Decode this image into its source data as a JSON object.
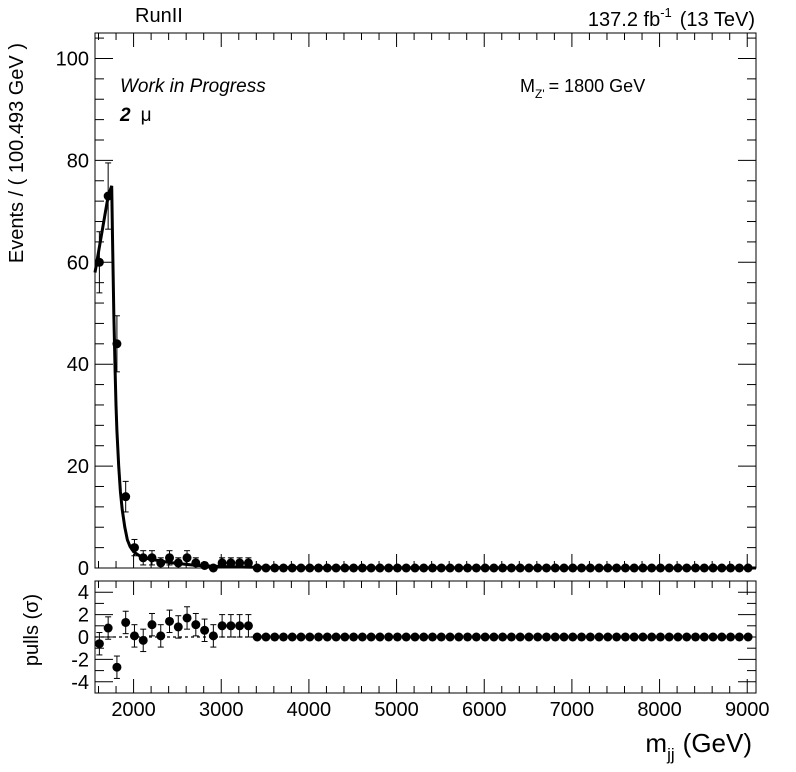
{
  "header": {
    "run_label": "RunII",
    "lumi_value": "137.2 fb",
    "lumi_exponent": "-1",
    "energy": "(13 TeV)"
  },
  "annotations": {
    "status": "Work in Progress",
    "channel_number": "2",
    "channel_symbol": "μ",
    "mass_prefix": "M",
    "mass_subscript": "Z'",
    "mass_value": "= 1800 GeV"
  },
  "chart_data": [
    {
      "type": "scatter",
      "panel": "main",
      "ylabel": "Events / ( 100.493 GeV )",
      "xlim": [
        1560,
        9100
      ],
      "ylim": [
        0,
        105
      ],
      "yticks": [
        0,
        20,
        40,
        60,
        80,
        100
      ],
      "grid": false,
      "series": [
        {
          "kind": "data",
          "x": [
            1610,
            1710,
            1810,
            1910,
            2010,
            2110,
            2210,
            2310,
            2410,
            2510,
            2610,
            2710,
            2810,
            2910,
            3010,
            3110,
            3210,
            3310,
            3410,
            3510,
            3610,
            3710,
            3810,
            3910,
            4010,
            4110,
            4210,
            4310,
            4410,
            4510,
            4610,
            4710,
            4810,
            4910,
            5010,
            5110,
            5210,
            5310,
            5410,
            5510,
            5610,
            5710,
            5810,
            5910,
            6010,
            6110,
            6210,
            6310,
            6410,
            6510,
            6610,
            6710,
            6810,
            6910,
            7010,
            7110,
            7210,
            7310,
            7410,
            7510,
            7610,
            7710,
            7810,
            7910,
            8010,
            8110,
            8210,
            8310,
            8410,
            8510,
            8610,
            8710,
            8810,
            8910,
            9010
          ],
          "y": [
            60,
            73,
            44,
            14,
            4,
            2,
            2,
            1,
            2,
            1,
            2,
            1,
            0.5,
            0,
            1,
            1,
            1,
            1,
            0,
            0,
            0,
            0,
            0,
            0,
            0,
            0,
            0,
            0,
            0,
            0,
            0,
            0,
            0,
            0,
            0,
            0,
            0,
            0,
            0,
            0,
            0,
            0,
            0,
            0,
            0,
            0,
            0,
            0,
            0,
            0,
            0,
            0,
            0,
            0,
            0,
            0,
            0,
            0,
            0,
            0,
            0,
            0,
            0,
            0,
            0,
            0,
            0,
            0,
            0,
            0,
            0,
            0,
            0,
            0,
            0
          ],
          "yerr": [
            6,
            6.5,
            5.5,
            3,
            1.6,
            1.4,
            1.4,
            1,
            1.4,
            1,
            1.4,
            1,
            0.6,
            0,
            1,
            1,
            1,
            1,
            0,
            0,
            0,
            0,
            0,
            0,
            0,
            0,
            0,
            0,
            0,
            0,
            0,
            0,
            0,
            0,
            0,
            0,
            0,
            0,
            0,
            0,
            0,
            0,
            0,
            0,
            0,
            0,
            0,
            0,
            0,
            0,
            0,
            0,
            0,
            0,
            0,
            0,
            0,
            0,
            0,
            0,
            0,
            0,
            0,
            0,
            0,
            0,
            0,
            0,
            0,
            0,
            0,
            0,
            0,
            0,
            0
          ]
        },
        {
          "kind": "fit",
          "x": [
            1560,
            1600,
            1650,
            1700,
            1730,
            1750,
            1760,
            1775,
            1790,
            1800,
            1810,
            1830,
            1850,
            1870,
            1900,
            1930,
            1960,
            2000,
            2050,
            2100,
            2200,
            2300,
            2400,
            2500,
            2600,
            2700,
            2800,
            3000,
            3300,
            3500,
            4000,
            5000,
            6000,
            7000,
            8000,
            9100
          ],
          "y": [
            58,
            62,
            67,
            72,
            74,
            75,
            65,
            50,
            38,
            32,
            27,
            20,
            15,
            11.5,
            8,
            5.5,
            4.2,
            3.2,
            2.6,
            2.1,
            1.7,
            1.4,
            1.1,
            0.9,
            0.7,
            0.55,
            0.45,
            0.3,
            0.18,
            0.12,
            0.05,
            0.02,
            0.01,
            0.005,
            0.002,
            0.001
          ]
        }
      ]
    },
    {
      "type": "scatter",
      "panel": "pulls",
      "xlabel_main": "m",
      "xlabel_subscript": "jj",
      "xlabel_unit": "(GeV)",
      "ylabel": "pulls (σ)",
      "xlim": [
        1560,
        9100
      ],
      "ylim": [
        -5,
        5
      ],
      "xticks": [
        2000,
        3000,
        4000,
        5000,
        6000,
        7000,
        8000,
        9000
      ],
      "yticks": [
        -4,
        -2,
        0,
        2,
        4
      ],
      "series": [
        {
          "kind": "pulls",
          "x": [
            1610,
            1710,
            1810,
            1910,
            2010,
            2110,
            2210,
            2310,
            2410,
            2510,
            2610,
            2710,
            2810,
            2910,
            3010,
            3110,
            3210,
            3310,
            3410,
            3510,
            3610,
            3710,
            3810,
            3910,
            4010,
            4110,
            4210,
            4310,
            4410,
            4510,
            4610,
            4710,
            4810,
            4910,
            5010,
            5110,
            5210,
            5310,
            5410,
            5510,
            5610,
            5710,
            5810,
            5910,
            6010,
            6110,
            6210,
            6310,
            6410,
            6510,
            6610,
            6710,
            6810,
            6910,
            7010,
            7110,
            7210,
            7310,
            7410,
            7510,
            7610,
            7710,
            7810,
            7910,
            8010,
            8110,
            8210,
            8310,
            8410,
            8510,
            8610,
            8710,
            8810,
            8910,
            9010
          ],
          "y": [
            -0.6,
            0.8,
            -2.7,
            1.3,
            0.1,
            -0.3,
            1.1,
            0.1,
            1.4,
            0.9,
            1.7,
            1.1,
            0.6,
            0.1,
            1.0,
            1.0,
            1.0,
            1.0,
            0,
            0,
            0,
            0,
            0,
            0,
            0,
            0,
            0,
            0,
            0,
            0,
            0,
            0,
            0,
            0,
            0,
            0,
            0,
            0,
            0,
            0,
            0,
            0,
            0,
            0,
            0,
            0,
            0,
            0,
            0,
            0,
            0,
            0,
            0,
            0,
            0,
            0,
            0,
            0,
            0,
            0,
            0,
            0,
            0,
            0,
            0,
            0,
            0,
            0,
            0,
            0,
            0,
            0,
            0,
            0,
            0
          ],
          "yerr": [
            1,
            1,
            1,
            1,
            1,
            1,
            1,
            1,
            1,
            1,
            1,
            1,
            1,
            1,
            1,
            1,
            1,
            1,
            0,
            0,
            0,
            0,
            0,
            0,
            0,
            0,
            0,
            0,
            0,
            0,
            0,
            0,
            0,
            0,
            0,
            0,
            0,
            0,
            0,
            0,
            0,
            0,
            0,
            0,
            0,
            0,
            0,
            0,
            0,
            0,
            0,
            0,
            0,
            0,
            0,
            0,
            0,
            0,
            0,
            0,
            0,
            0,
            0,
            0,
            0,
            0,
            0,
            0,
            0,
            0,
            0,
            0,
            0,
            0,
            0
          ]
        }
      ]
    }
  ]
}
